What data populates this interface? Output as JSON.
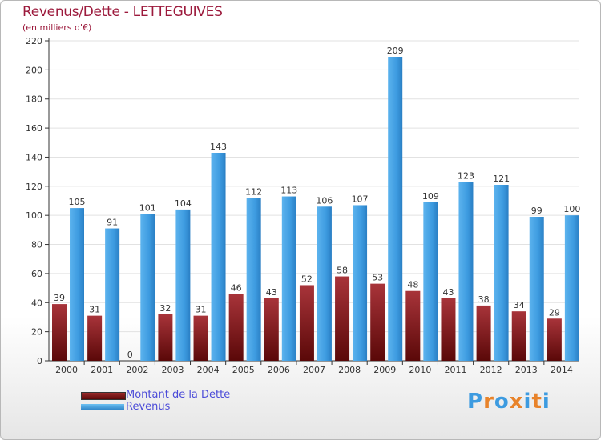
{
  "chart_data": {
    "type": "bar",
    "title": "Revenus/Dette - LETTEGUIVES",
    "subtitle": "(en milliers d'€)",
    "categories": [
      "2000",
      "2001",
      "2002",
      "2003",
      "2004",
      "2005",
      "2006",
      "2007",
      "2008",
      "2009",
      "2010",
      "2011",
      "2012",
      "2013",
      "2014"
    ],
    "series": [
      {
        "name": "Montant de la Dette",
        "values": [
          39,
          31,
          0,
          32,
          31,
          46,
          43,
          52,
          58,
          53,
          48,
          43,
          38,
          34,
          29
        ],
        "color": "#7a1a1a"
      },
      {
        "name": "Revenus",
        "values": [
          105,
          91,
          101,
          104,
          143,
          112,
          113,
          106,
          107,
          209,
          109,
          123,
          121,
          99,
          100
        ],
        "color": "#3d9be0"
      }
    ],
    "ylim": [
      0,
      220
    ],
    "yticks": [
      0,
      20,
      40,
      60,
      80,
      100,
      120,
      140,
      160,
      180,
      200,
      220
    ],
    "grid": true,
    "legend": "bottom-left"
  },
  "logo": {
    "text": "Proxiti",
    "colors": [
      "#3d9be0",
      "#e8832a",
      "#3d9be0",
      "#e8832a",
      "#3d9be0",
      "#e8832a",
      "#3d9be0"
    ]
  }
}
